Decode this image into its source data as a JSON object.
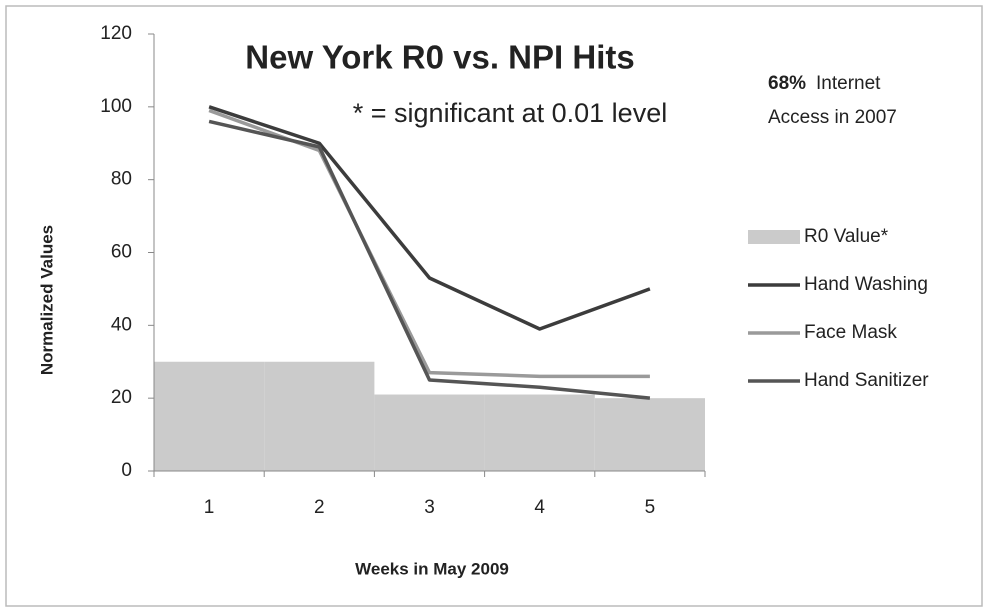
{
  "chart_data": {
    "type": "combo",
    "title": "New York R0 vs. NPI Hits",
    "subtitle": "* = significant at 0.01 level",
    "annotation": {
      "bold": "68%",
      "line1": "Internet",
      "line2": "Access in 2007"
    },
    "y_label": "Normalized Values",
    "x_label": "Weeks in May 2009",
    "categories": [
      "1",
      "2",
      "3",
      "4",
      "5"
    ],
    "series": [
      {
        "name": "R0 Value*",
        "type": "bar",
        "color": "#cbcbcb",
        "values": [
          30,
          30,
          21,
          21,
          20
        ]
      },
      {
        "name": "Hand Washing",
        "type": "line",
        "color": "#3c3c3c",
        "values": [
          100,
          90,
          53,
          39,
          50
        ]
      },
      {
        "name": "Face Mask",
        "type": "line",
        "color": "#9a9a9a",
        "values": [
          99,
          88,
          27,
          26,
          26
        ]
      },
      {
        "name": "Hand Sanitizer",
        "type": "line",
        "color": "#555555",
        "values": [
          96,
          89,
          25,
          23,
          20
        ]
      }
    ],
    "ylim": [
      0,
      120
    ],
    "yticks": [
      0,
      20,
      40,
      60,
      80,
      100,
      120
    ],
    "grid": false,
    "legend": "right"
  }
}
